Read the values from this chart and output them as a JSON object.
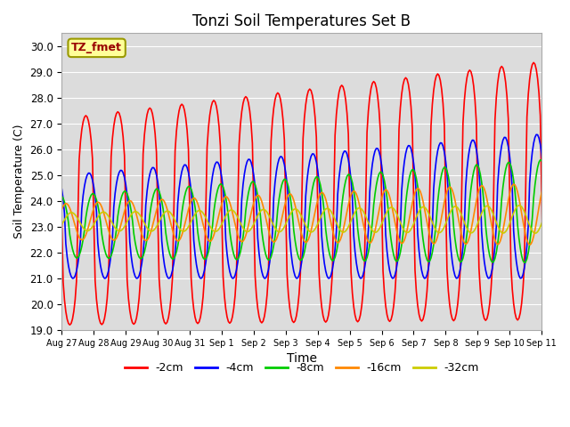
{
  "title": "Tonzi Soil Temperatures Set B",
  "xlabel": "Time",
  "ylabel": "Soil Temperature (C)",
  "ylim": [
    19.0,
    30.5
  ],
  "yticks": [
    19.0,
    20.0,
    21.0,
    22.0,
    23.0,
    24.0,
    25.0,
    26.0,
    27.0,
    28.0,
    29.0,
    30.0
  ],
  "legend_label": "TZ_fmet",
  "series": [
    {
      "label": "-2cm",
      "color": "#ff0000",
      "lw": 1.2
    },
    {
      "label": "-4cm",
      "color": "#0000ff",
      "lw": 1.2
    },
    {
      "label": "-8cm",
      "color": "#00cc00",
      "lw": 1.2
    },
    {
      "label": "-16cm",
      "color": "#ff8800",
      "lw": 1.2
    },
    {
      "label": "-32cm",
      "color": "#cccc00",
      "lw": 1.2
    }
  ],
  "bg_color": "#dcdcdc",
  "grid_color": "#ffffff",
  "tick_labels": [
    "Aug 27",
    "Aug 28",
    "Aug 29",
    "Aug 30",
    "Aug 31",
    "Sep 1",
    "Sep 2",
    "Sep 3",
    "Sep 4",
    "Sep 5",
    "Sep 6",
    "Sep 7",
    "Sep 8",
    "Sep 9",
    "Sep 10",
    "Sep 11"
  ],
  "annotation_box_color": "#ffff99",
  "annotation_text_color": "#990000",
  "annotation_border_color": "#999900"
}
